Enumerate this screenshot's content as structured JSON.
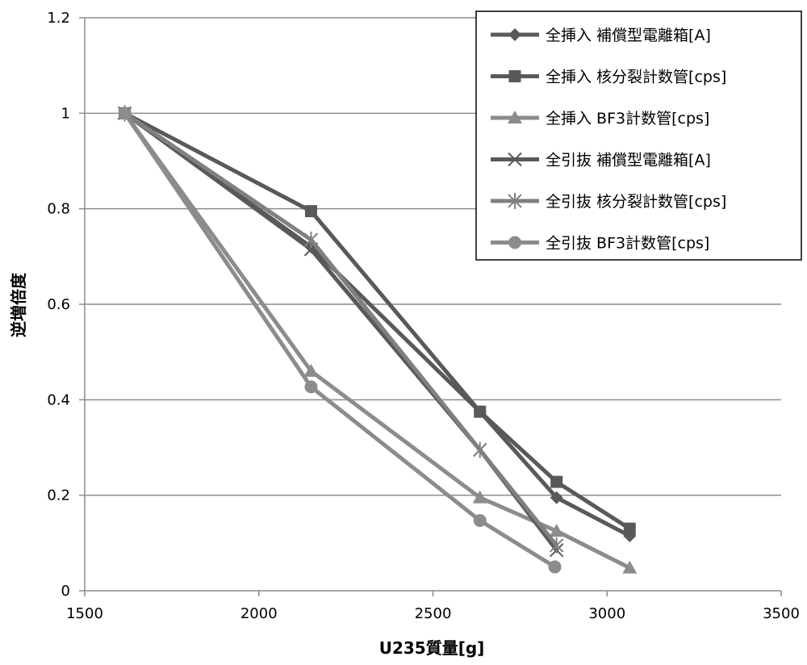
{
  "chart_data": {
    "type": "line",
    "xlabel": "U235質量[g]",
    "ylabel": "逆増倍度",
    "xlim": [
      1500,
      3500
    ],
    "ylim": [
      0,
      1.2
    ],
    "x_ticks": [
      "1500",
      "2000",
      "2500",
      "3000",
      "3500"
    ],
    "y_ticks": [
      "0",
      "0.2",
      "0.4",
      "0.6",
      "0.8",
      "1",
      "1.2"
    ],
    "grid": "horizontal",
    "legend_position": "top-right",
    "series": [
      {
        "name": "全挿入 補償型電離箱[A]",
        "color": "#595959",
        "marker": "diamond",
        "x": [
          1615,
          2150,
          2635,
          2855,
          3065
        ],
        "y": [
          1.0,
          0.72,
          0.375,
          0.195,
          0.115
        ]
      },
      {
        "name": "全挿入 核分裂計数管[cps]",
        "color": "#595959",
        "marker": "square",
        "x": [
          1615,
          2150,
          2635,
          2855,
          3065
        ],
        "y": [
          1.0,
          0.795,
          0.375,
          0.228,
          0.13
        ]
      },
      {
        "name": "全挿入 BF3計数管[cps]",
        "color": "#8c8c8c",
        "marker": "triangle",
        "x": [
          1615,
          2150,
          2635,
          2855,
          3065
        ],
        "y": [
          1.0,
          0.46,
          0.195,
          0.125,
          0.048
        ]
      },
      {
        "name": "全引抜 補償型電離箱[A]",
        "color": "#595959",
        "marker": "x",
        "x": [
          1615,
          2150,
          2635,
          2855
        ],
        "y": [
          1.0,
          0.715,
          0.295,
          0.085
        ]
      },
      {
        "name": "全引抜 核分裂計数管[cps]",
        "color": "#808080",
        "marker": "star",
        "x": [
          1615,
          2150,
          2635,
          2855
        ],
        "y": [
          1.0,
          0.735,
          0.295,
          0.095
        ]
      },
      {
        "name": "全引抜 BF3計数管[cps]",
        "color": "#8c8c8c",
        "marker": "circle",
        "x": [
          1615,
          2150,
          2635,
          2850
        ],
        "y": [
          1.0,
          0.427,
          0.147,
          0.05
        ]
      }
    ]
  }
}
